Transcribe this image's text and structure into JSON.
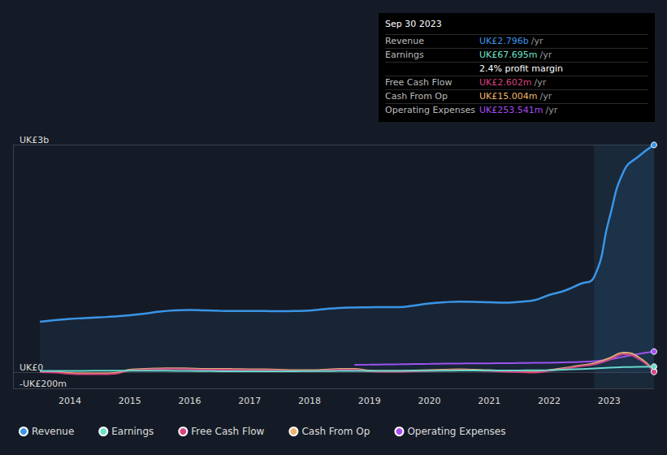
{
  "chart_data": {
    "type": "line",
    "x": [
      2013.5,
      2013.75,
      2014,
      2014.25,
      2014.5,
      2014.75,
      2015,
      2015.25,
      2015.5,
      2015.75,
      2016,
      2016.25,
      2016.5,
      2016.75,
      2017,
      2017.25,
      2017.5,
      2017.75,
      2018,
      2018.25,
      2018.5,
      2018.75,
      2019,
      2019.25,
      2019.5,
      2019.75,
      2020,
      2020.25,
      2020.5,
      2020.75,
      2021,
      2021.25,
      2021.5,
      2021.75,
      2022,
      2022.25,
      2022.5,
      2022.75,
      2023,
      2023.25,
      2023.5,
      2023.75
    ],
    "series": [
      {
        "name": "Revenue",
        "color": "#3a95e6",
        "values": [
          620,
          640,
          655,
          665,
          675,
          685,
          700,
          720,
          745,
          760,
          765,
          760,
          755,
          752,
          752,
          752,
          750,
          752,
          758,
          775,
          790,
          795,
          798,
          800,
          800,
          820,
          845,
          860,
          868,
          866,
          860,
          855,
          866,
          885,
          950,
          1000,
          1080,
          1170,
          1880,
          2480,
          2660,
          2796
        ]
      },
      {
        "name": "Earnings",
        "color": "#6fe0c8",
        "values": [
          15,
          15,
          16,
          16,
          17,
          17,
          18,
          18,
          17,
          16,
          14,
          12,
          11,
          10,
          10,
          10,
          10,
          11,
          12,
          13,
          14,
          15,
          15,
          16,
          16,
          17,
          18,
          18,
          19,
          19,
          20,
          20,
          21,
          22,
          25,
          30,
          38,
          45,
          55,
          62,
          66,
          67.695
        ]
      },
      {
        "name": "Free Cash Flow",
        "color": "#d9427f",
        "values": [
          0,
          -5,
          -20,
          -25,
          -25,
          -20,
          20,
          30,
          35,
          38,
          35,
          30,
          30,
          28,
          25,
          25,
          20,
          15,
          15,
          20,
          30,
          30,
          10,
          5,
          5,
          10,
          15,
          20,
          25,
          20,
          15,
          5,
          0,
          -5,
          15,
          40,
          70,
          95,
          150,
          220,
          160,
          2.602
        ]
      },
      {
        "name": "Cash From Op",
        "color": "#f0b36d",
        "values": [
          10,
          5,
          -10,
          -15,
          -15,
          -10,
          30,
          40,
          45,
          48,
          45,
          40,
          40,
          38,
          35,
          35,
          30,
          25,
          25,
          30,
          40,
          40,
          20,
          15,
          15,
          20,
          25,
          30,
          35,
          30,
          25,
          15,
          10,
          5,
          25,
          50,
          80,
          110,
          170,
          240,
          180,
          15.004
        ]
      },
      {
        "name": "Operating Expenses",
        "color": "#a64ef0",
        "values": [
          null,
          null,
          null,
          null,
          null,
          null,
          null,
          null,
          null,
          null,
          null,
          null,
          null,
          null,
          null,
          null,
          null,
          null,
          null,
          null,
          null,
          90,
          92,
          95,
          97,
          100,
          102,
          105,
          106,
          107,
          108,
          110,
          112,
          114,
          116,
          120,
          125,
          135,
          155,
          190,
          225,
          253.541
        ]
      }
    ],
    "xlim": [
      2013.05,
      2023.75
    ],
    "xticks": [
      2014,
      2015,
      2016,
      2017,
      2018,
      2019,
      2020,
      2021,
      2022,
      2023
    ],
    "ylim": [
      -200,
      2800
    ],
    "yticks": [
      {
        "value": -200,
        "label": "-UK£200m"
      },
      {
        "value": 0,
        "label": "UK£0"
      },
      {
        "value": 2800,
        "label": "UK£3b"
      }
    ],
    "highlight_range": [
      2022.75,
      2023.75
    ],
    "grid": true,
    "legend": "bottom-left",
    "info_box": {
      "title": "Sep 30 2023",
      "rows": [
        {
          "label": "Revenue",
          "value": "UK£2.796b",
          "unit": "/yr"
        },
        {
          "label": "Earnings",
          "value": "UK£67.695m",
          "unit": "/yr"
        },
        {
          "value": "2.4% profit margin"
        },
        {
          "label": "Free Cash Flow",
          "value": "UK£2.602m",
          "unit": "/yr"
        },
        {
          "label": "Cash From Op",
          "value": "UK£15.004m",
          "unit": "/yr"
        },
        {
          "label": "Operating Expenses",
          "value": "UK£253.541m",
          "unit": "/yr"
        }
      ]
    }
  }
}
